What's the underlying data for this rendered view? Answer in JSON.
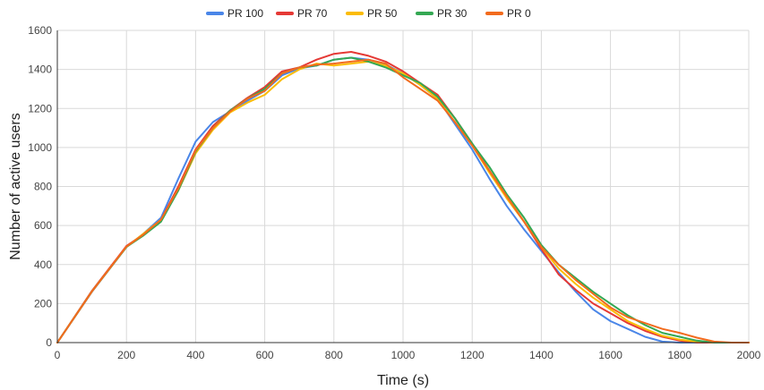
{
  "chart_data": {
    "type": "line",
    "title": "",
    "xlabel": "Time (s)",
    "ylabel": "Number of active users",
    "xlim": [
      0,
      2000
    ],
    "ylim": [
      0,
      1600
    ],
    "x_ticks": [
      0,
      200,
      400,
      600,
      800,
      1000,
      1200,
      1400,
      1600,
      1800,
      2000
    ],
    "y_ticks": [
      0,
      200,
      400,
      600,
      800,
      1000,
      1200,
      1400,
      1600
    ],
    "grid": true,
    "legend_position": "top",
    "series": [
      {
        "name": "PR 100",
        "color": "#4a86e8",
        "points": [
          [
            0,
            0
          ],
          [
            100,
            260
          ],
          [
            200,
            490
          ],
          [
            250,
            560
          ],
          [
            300,
            640
          ],
          [
            350,
            840
          ],
          [
            400,
            1030
          ],
          [
            450,
            1130
          ],
          [
            500,
            1185
          ],
          [
            550,
            1240
          ],
          [
            600,
            1290
          ],
          [
            650,
            1370
          ],
          [
            700,
            1405
          ],
          [
            750,
            1420
          ],
          [
            800,
            1450
          ],
          [
            850,
            1460
          ],
          [
            900,
            1450
          ],
          [
            950,
            1425
          ],
          [
            1000,
            1380
          ],
          [
            1050,
            1320
          ],
          [
            1100,
            1250
          ],
          [
            1150,
            1120
          ],
          [
            1200,
            990
          ],
          [
            1250,
            840
          ],
          [
            1300,
            700
          ],
          [
            1350,
            580
          ],
          [
            1400,
            470
          ],
          [
            1450,
            360
          ],
          [
            1500,
            260
          ],
          [
            1550,
            170
          ],
          [
            1600,
            110
          ],
          [
            1650,
            70
          ],
          [
            1700,
            30
          ],
          [
            1750,
            5
          ],
          [
            1800,
            0
          ],
          [
            2000,
            0
          ]
        ]
      },
      {
        "name": "PR 70",
        "color": "#e53935",
        "points": [
          [
            0,
            0
          ],
          [
            100,
            265
          ],
          [
            200,
            495
          ],
          [
            250,
            555
          ],
          [
            300,
            630
          ],
          [
            350,
            800
          ],
          [
            400,
            990
          ],
          [
            450,
            1110
          ],
          [
            500,
            1190
          ],
          [
            550,
            1255
          ],
          [
            600,
            1310
          ],
          [
            650,
            1390
          ],
          [
            700,
            1410
          ],
          [
            750,
            1450
          ],
          [
            800,
            1480
          ],
          [
            850,
            1490
          ],
          [
            900,
            1470
          ],
          [
            950,
            1440
          ],
          [
            1000,
            1390
          ],
          [
            1050,
            1330
          ],
          [
            1100,
            1270
          ],
          [
            1150,
            1150
          ],
          [
            1200,
            1020
          ],
          [
            1250,
            880
          ],
          [
            1300,
            740
          ],
          [
            1350,
            620
          ],
          [
            1400,
            480
          ],
          [
            1450,
            350
          ],
          [
            1500,
            270
          ],
          [
            1550,
            200
          ],
          [
            1600,
            150
          ],
          [
            1650,
            100
          ],
          [
            1700,
            60
          ],
          [
            1750,
            30
          ],
          [
            1800,
            10
          ],
          [
            1850,
            0
          ],
          [
            2000,
            0
          ]
        ]
      },
      {
        "name": "PR 50",
        "color": "#fbbc04",
        "points": [
          [
            0,
            0
          ],
          [
            100,
            262
          ],
          [
            200,
            490
          ],
          [
            250,
            560
          ],
          [
            300,
            630
          ],
          [
            350,
            780
          ],
          [
            400,
            970
          ],
          [
            450,
            1090
          ],
          [
            500,
            1180
          ],
          [
            550,
            1230
          ],
          [
            600,
            1270
          ],
          [
            650,
            1350
          ],
          [
            700,
            1400
          ],
          [
            750,
            1430
          ],
          [
            800,
            1420
          ],
          [
            850,
            1430
          ],
          [
            900,
            1440
          ],
          [
            950,
            1420
          ],
          [
            1000,
            1380
          ],
          [
            1050,
            1320
          ],
          [
            1100,
            1250
          ],
          [
            1150,
            1130
          ],
          [
            1200,
            1010
          ],
          [
            1250,
            870
          ],
          [
            1300,
            740
          ],
          [
            1350,
            620
          ],
          [
            1400,
            490
          ],
          [
            1450,
            380
          ],
          [
            1500,
            300
          ],
          [
            1550,
            230
          ],
          [
            1600,
            170
          ],
          [
            1650,
            110
          ],
          [
            1700,
            70
          ],
          [
            1750,
            35
          ],
          [
            1800,
            15
          ],
          [
            1850,
            5
          ],
          [
            1900,
            0
          ],
          [
            2000,
            0
          ]
        ]
      },
      {
        "name": "PR 30",
        "color": "#34a853",
        "points": [
          [
            0,
            0
          ],
          [
            100,
            262
          ],
          [
            200,
            490
          ],
          [
            250,
            550
          ],
          [
            300,
            620
          ],
          [
            350,
            780
          ],
          [
            400,
            980
          ],
          [
            450,
            1100
          ],
          [
            500,
            1190
          ],
          [
            550,
            1250
          ],
          [
            600,
            1300
          ],
          [
            650,
            1380
          ],
          [
            700,
            1410
          ],
          [
            750,
            1420
          ],
          [
            800,
            1450
          ],
          [
            850,
            1460
          ],
          [
            900,
            1440
          ],
          [
            950,
            1410
          ],
          [
            1000,
            1370
          ],
          [
            1050,
            1330
          ],
          [
            1100,
            1260
          ],
          [
            1150,
            1150
          ],
          [
            1200,
            1020
          ],
          [
            1250,
            900
          ],
          [
            1300,
            760
          ],
          [
            1350,
            640
          ],
          [
            1400,
            500
          ],
          [
            1450,
            400
          ],
          [
            1500,
            330
          ],
          [
            1550,
            260
          ],
          [
            1600,
            200
          ],
          [
            1650,
            140
          ],
          [
            1700,
            90
          ],
          [
            1750,
            50
          ],
          [
            1800,
            30
          ],
          [
            1850,
            10
          ],
          [
            1900,
            0
          ],
          [
            2000,
            0
          ]
        ]
      },
      {
        "name": "PR 0",
        "color": "#f26b1d",
        "points": [
          [
            0,
            0
          ],
          [
            100,
            262
          ],
          [
            200,
            492
          ],
          [
            250,
            555
          ],
          [
            300,
            630
          ],
          [
            350,
            790
          ],
          [
            400,
            985
          ],
          [
            450,
            1100
          ],
          [
            500,
            1185
          ],
          [
            550,
            1250
          ],
          [
            600,
            1290
          ],
          [
            650,
            1380
          ],
          [
            700,
            1410
          ],
          [
            750,
            1425
          ],
          [
            800,
            1430
          ],
          [
            850,
            1440
          ],
          [
            900,
            1450
          ],
          [
            950,
            1430
          ],
          [
            1000,
            1360
          ],
          [
            1050,
            1300
          ],
          [
            1100,
            1240
          ],
          [
            1150,
            1130
          ],
          [
            1200,
            1010
          ],
          [
            1250,
            880
          ],
          [
            1300,
            750
          ],
          [
            1350,
            620
          ],
          [
            1400,
            490
          ],
          [
            1450,
            400
          ],
          [
            1500,
            320
          ],
          [
            1550,
            250
          ],
          [
            1600,
            180
          ],
          [
            1650,
            130
          ],
          [
            1700,
            100
          ],
          [
            1750,
            70
          ],
          [
            1800,
            50
          ],
          [
            1850,
            25
          ],
          [
            1900,
            5
          ],
          [
            1950,
            0
          ],
          [
            2000,
            0
          ]
        ]
      }
    ]
  }
}
